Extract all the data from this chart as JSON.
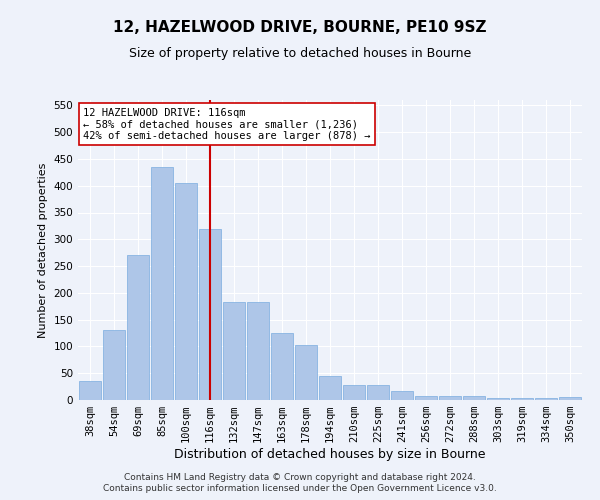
{
  "title": "12, HAZELWOOD DRIVE, BOURNE, PE10 9SZ",
  "subtitle": "Size of property relative to detached houses in Bourne",
  "xlabel": "Distribution of detached houses by size in Bourne",
  "ylabel": "Number of detached properties",
  "categories": [
    "38sqm",
    "54sqm",
    "69sqm",
    "85sqm",
    "100sqm",
    "116sqm",
    "132sqm",
    "147sqm",
    "163sqm",
    "178sqm",
    "194sqm",
    "210sqm",
    "225sqm",
    "241sqm",
    "256sqm",
    "272sqm",
    "288sqm",
    "303sqm",
    "319sqm",
    "334sqm",
    "350sqm"
  ],
  "values": [
    35,
    130,
    270,
    435,
    405,
    320,
    183,
    183,
    125,
    103,
    45,
    28,
    28,
    17,
    7,
    7,
    8,
    3,
    3,
    3,
    6
  ],
  "bar_color": "#aec6e8",
  "bar_edgecolor": "#7aace0",
  "vline_x": 5,
  "vline_color": "#cc0000",
  "annotation_text": "12 HAZELWOOD DRIVE: 116sqm\n← 58% of detached houses are smaller (1,236)\n42% of semi-detached houses are larger (878) →",
  "annotation_box_color": "#ffffff",
  "annotation_box_edgecolor": "#cc0000",
  "ylim": [
    0,
    560
  ],
  "yticks": [
    0,
    50,
    100,
    150,
    200,
    250,
    300,
    350,
    400,
    450,
    500,
    550
  ],
  "footer_line1": "Contains HM Land Registry data © Crown copyright and database right 2024.",
  "footer_line2": "Contains public sector information licensed under the Open Government Licence v3.0.",
  "background_color": "#eef2fa",
  "plot_background_color": "#eef2fa",
  "grid_color": "#ffffff",
  "title_fontsize": 11,
  "subtitle_fontsize": 9,
  "ylabel_fontsize": 8,
  "xlabel_fontsize": 9,
  "tick_fontsize": 7.5,
  "footer_fontsize": 6.5
}
